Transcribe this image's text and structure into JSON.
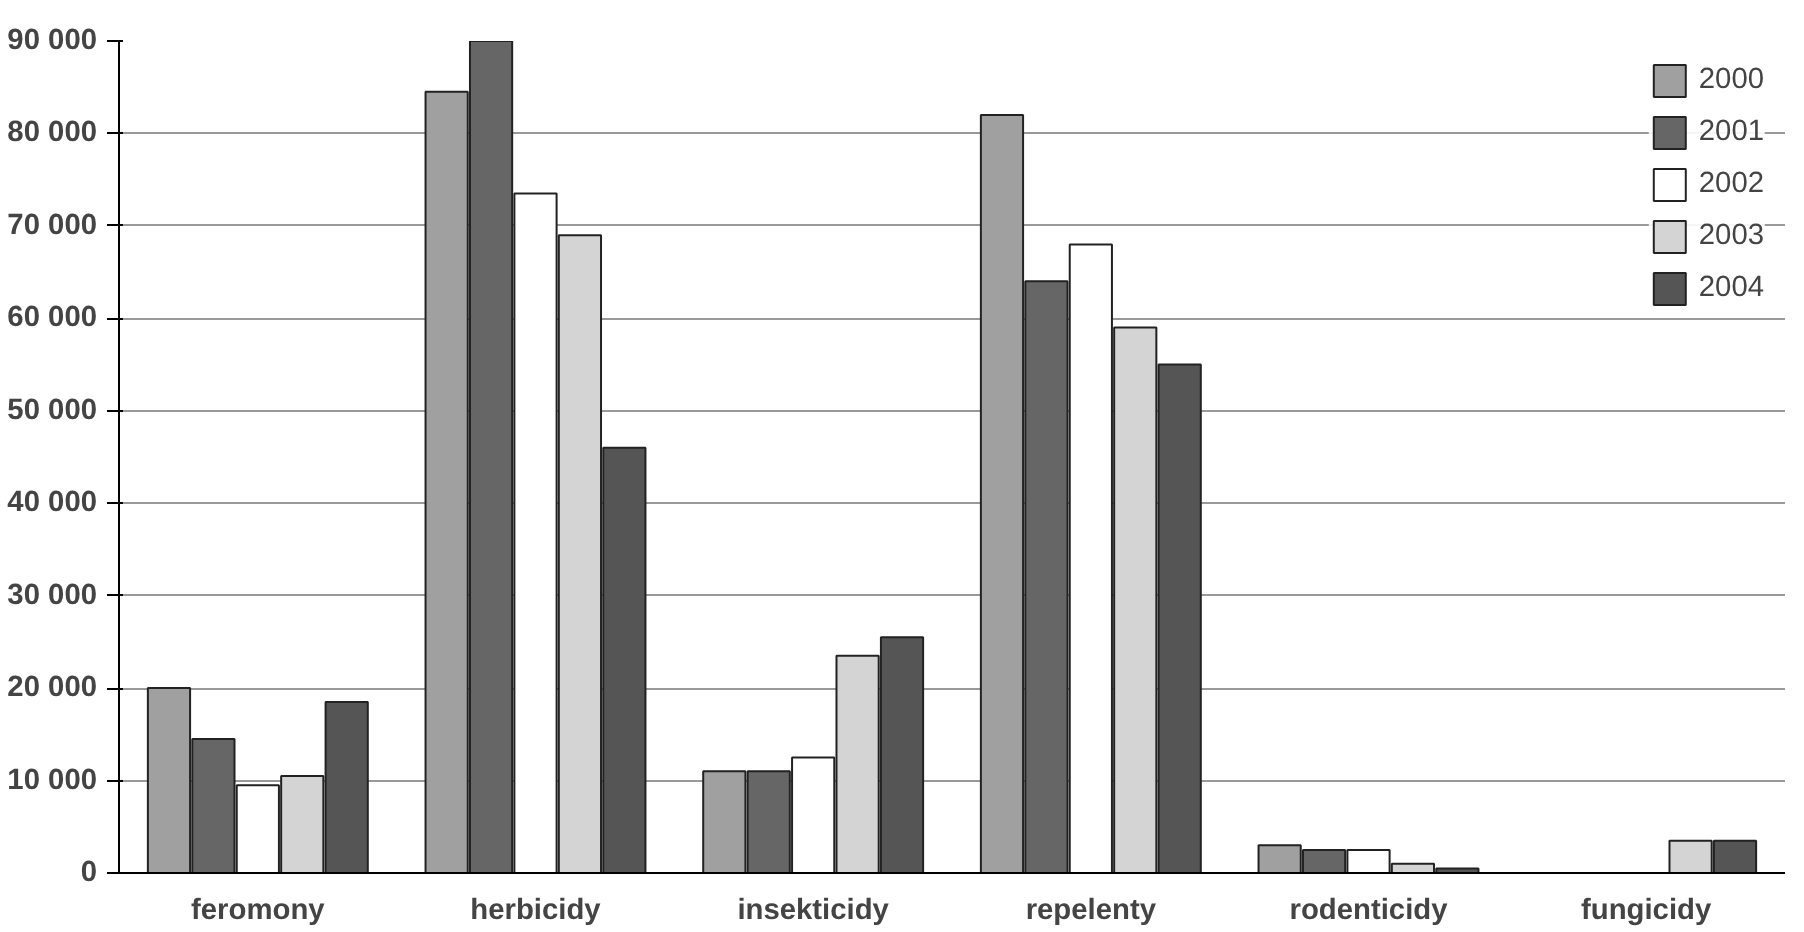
{
  "chart_data": {
    "type": "bar",
    "categories": [
      "feromony",
      "herbicidy",
      "insekticidy",
      "repelenty",
      "rodenticidy",
      "fungicidy"
    ],
    "series": [
      {
        "name": "2000",
        "color": "#a0a0a0",
        "values": [
          20000,
          84500,
          11000,
          82000,
          3000,
          null
        ]
      },
      {
        "name": "2001",
        "color": "#666666",
        "values": [
          14500,
          90000,
          11000,
          64000,
          2500,
          null
        ]
      },
      {
        "name": "2002",
        "color": "#ffffff",
        "values": [
          9500,
          73500,
          12500,
          68000,
          2500,
          null
        ]
      },
      {
        "name": "2003",
        "color": "#d4d4d4",
        "values": [
          10500,
          69000,
          23500,
          59000,
          1000,
          3500
        ]
      },
      {
        "name": "2004",
        "color": "#555555",
        "values": [
          18500,
          46000,
          25500,
          55000,
          500,
          3500
        ]
      }
    ],
    "ylim": [
      0,
      90000
    ],
    "yticks": [
      0,
      {
        "value": 10000,
        "label": "10 000"
      },
      {
        "value": 20000,
        "label": "20 000"
      },
      {
        "value": 30000,
        "label": "30 000"
      },
      {
        "value": 40000,
        "label": "40 000"
      },
      {
        "value": 50000,
        "label": "50 000"
      },
      {
        "value": 60000,
        "label": "60 000"
      },
      {
        "value": 70000,
        "label": "70 000"
      },
      {
        "value": 80000,
        "label": "80 000"
      },
      {
        "value": 90000,
        "label": "90 000"
      }
    ],
    "grid": "y",
    "legend": "top right"
  }
}
